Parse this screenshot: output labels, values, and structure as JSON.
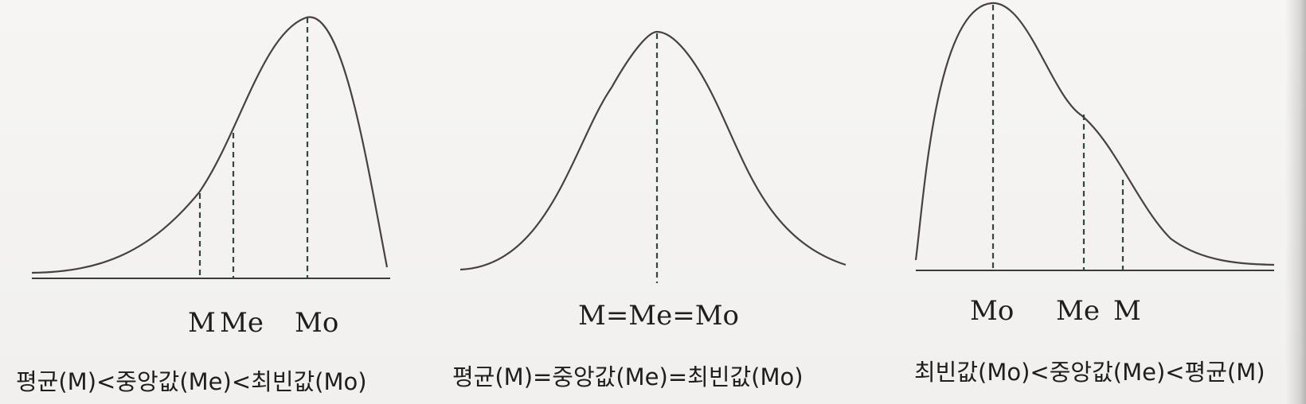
{
  "panels": [
    {
      "id": "left",
      "skew": "negative",
      "labels": {
        "mean": "M",
        "median": "Me",
        "mode": "Mo"
      },
      "caption": "평균(M)<중앙값(Me)<최빈값(Mo)"
    },
    {
      "id": "center",
      "skew": "symmetric",
      "labels": {
        "combined": "M=Me=Mo"
      },
      "caption": "평균(M)=중앙값(Me)=최빈값(Mo)"
    },
    {
      "id": "right",
      "skew": "positive",
      "labels": {
        "mode": "Mo",
        "median": "Me",
        "mean": "M"
      },
      "caption": "최빈값(Mo)<중앙값(Me)<평균(M)"
    }
  ],
  "colors": {
    "curve": "#4a4043",
    "guide": "#2f4a36",
    "text": "#1e1e1e"
  }
}
